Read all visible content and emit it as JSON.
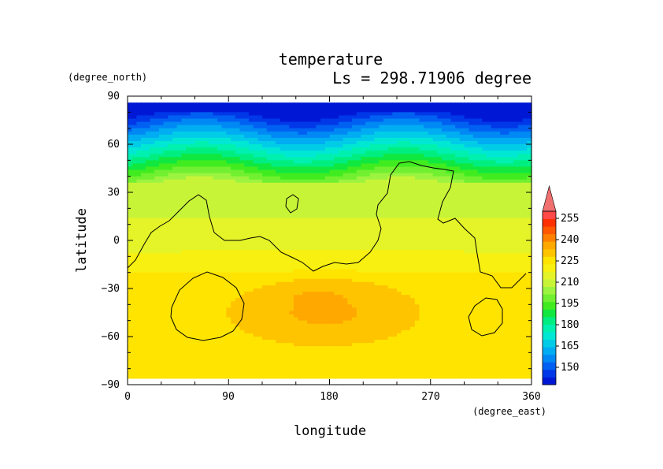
{
  "chart_data": {
    "type": "heatmap",
    "title": "temperature",
    "subtitle": "Ls = 298.71906 degree",
    "xlabel": "longitude",
    "ylabel": "latitude",
    "xunit": "(degree_east)",
    "yunit": "(degree_north)",
    "xlim": [
      0,
      360
    ],
    "ylim": [
      -90,
      90
    ],
    "xticks": [
      "0",
      "90",
      "180",
      "270",
      "360"
    ],
    "yticks": [
      "90",
      "60",
      "30",
      "0",
      "−30",
      "−60",
      "−90"
    ],
    "xtick_values": [
      0,
      90,
      180,
      270,
      360
    ],
    "ytick_values": [
      90,
      60,
      30,
      0,
      -30,
      -60,
      -90
    ],
    "colorbar": {
      "labels": [
        "255",
        "240",
        "225",
        "210",
        "195",
        "180",
        "165",
        "150"
      ],
      "levels": [
        145,
        150,
        155,
        160,
        165,
        170,
        175,
        180,
        185,
        190,
        195,
        200,
        205,
        210,
        215,
        220,
        225,
        230,
        235,
        240,
        245,
        250,
        255,
        260
      ],
      "colors": [
        "#0018d6",
        "#0038e8",
        "#0060f2",
        "#0088f4",
        "#00acf2",
        "#00cce8",
        "#00e8d4",
        "#00f0b0",
        "#00ee80",
        "#10e840",
        "#40ec20",
        "#70f030",
        "#9cf440",
        "#c8f438",
        "#e4f428",
        "#f8f010",
        "#ffe400",
        "#ffc400",
        "#ffa800",
        "#ff8000",
        "#ff5800",
        "#ff3000",
        "#ff4848",
        "#f07070"
      ]
    }
  }
}
